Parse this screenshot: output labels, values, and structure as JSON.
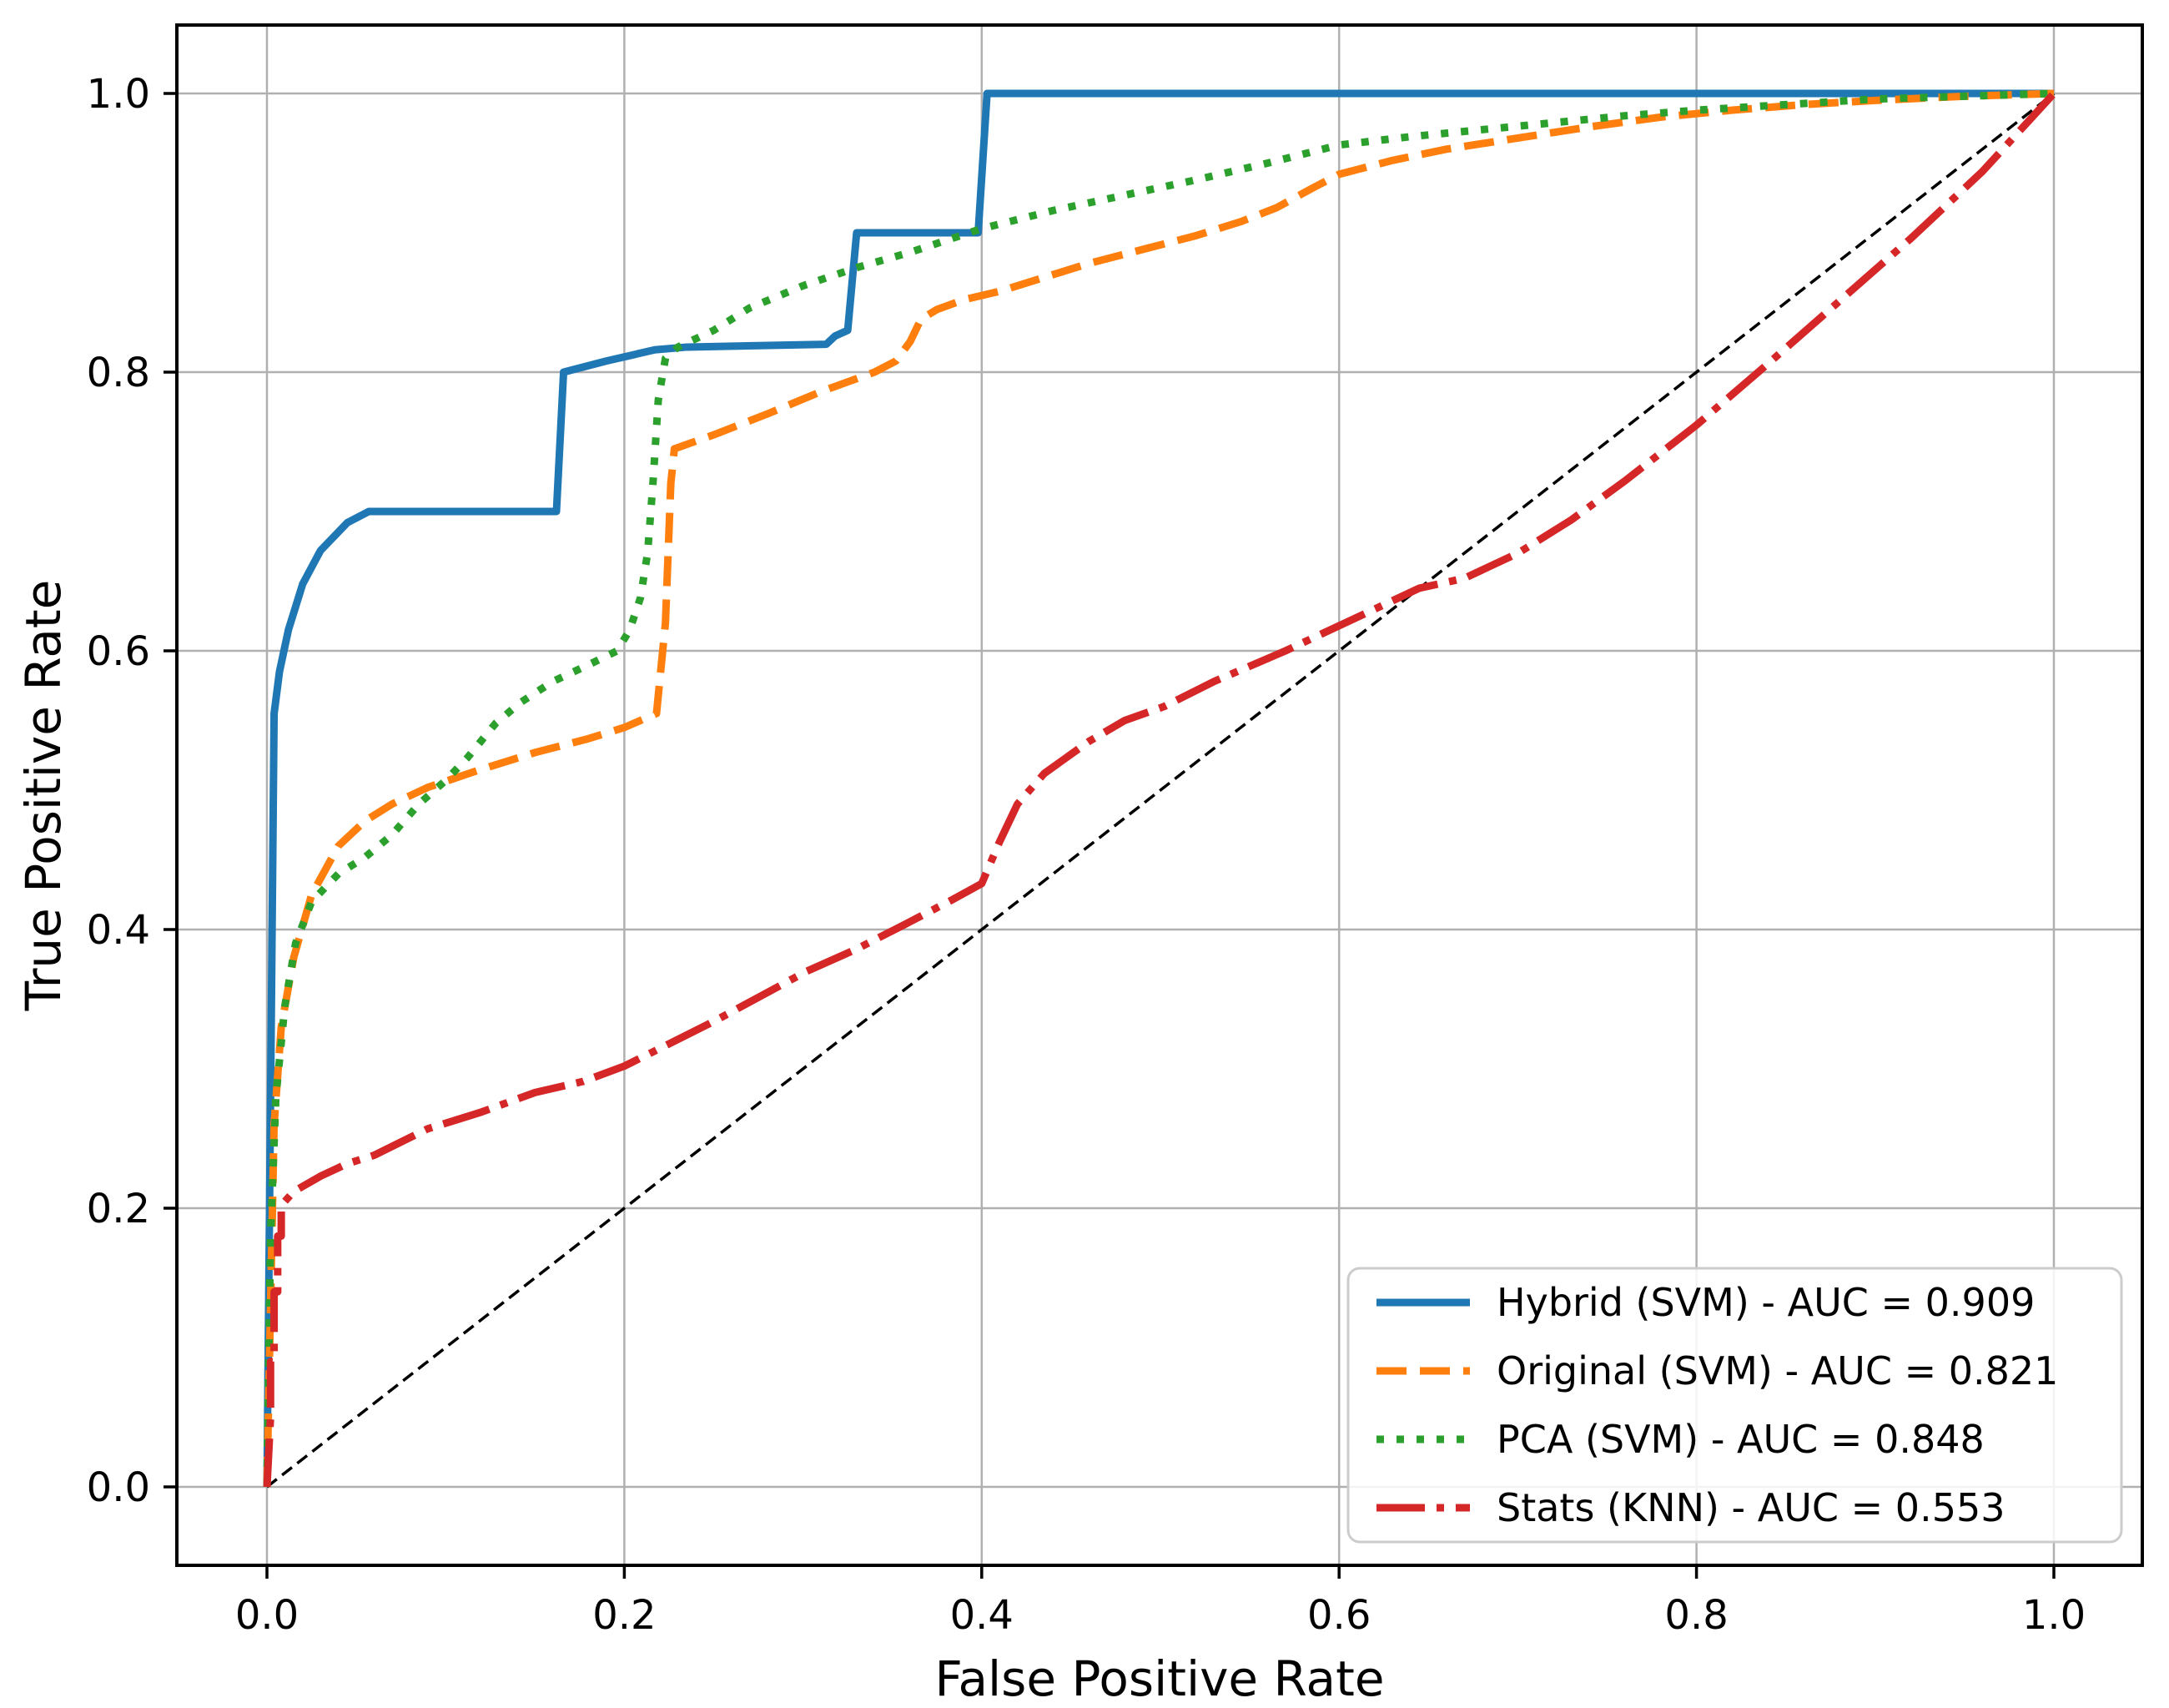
{
  "figure": {
    "background_color": "#ffffff",
    "grid_color": "#b0b0b0",
    "spine_color": "#000000",
    "legend_border_color": "#cccccc",
    "legend_background": "rgba(255,255,255,0.85)"
  },
  "chart_data": {
    "type": "line",
    "title": "",
    "xlabel": "False Positive Rate",
    "ylabel": "True Positive Rate",
    "xlim": [
      -0.05,
      1.05
    ],
    "ylim": [
      -0.05,
      1.05
    ],
    "grid": true,
    "legend_position": "lower right",
    "x_ticks": [
      0,
      0.2,
      0.4,
      0.6,
      0.8,
      1.0
    ],
    "x_tick_labels": [
      "0.0",
      "0.2",
      "0.4",
      "0.6",
      "0.8",
      "1.0"
    ],
    "y_ticks": [
      0,
      0.2,
      0.4,
      0.6,
      0.8,
      1.0
    ],
    "y_tick_labels": [
      "0.0",
      "0.2",
      "0.4",
      "0.6",
      "0.8",
      "1.0"
    ],
    "series": [
      {
        "name": "hybrid-svm",
        "legend_label": "Hybrid (SVM) - AUC = 0.909",
        "auc": 0.909,
        "color": "#1f77b4",
        "linestyle": "solid",
        "points": [
          [
            0.0,
            0.0
          ],
          [
            0.004,
            0.555
          ],
          [
            0.007,
            0.585
          ],
          [
            0.012,
            0.615
          ],
          [
            0.02,
            0.648
          ],
          [
            0.03,
            0.672
          ],
          [
            0.045,
            0.692
          ],
          [
            0.057,
            0.7
          ],
          [
            0.162,
            0.7
          ],
          [
            0.166,
            0.8
          ],
          [
            0.19,
            0.808
          ],
          [
            0.217,
            0.816
          ],
          [
            0.235,
            0.818
          ],
          [
            0.313,
            0.82
          ],
          [
            0.318,
            0.826
          ],
          [
            0.325,
            0.83
          ],
          [
            0.33,
            0.9
          ],
          [
            0.398,
            0.9
          ],
          [
            0.403,
            1.0
          ],
          [
            1.0,
            1.0
          ]
        ]
      },
      {
        "name": "original-svm",
        "legend_label": "Original (SVM) - AUC = 0.821",
        "auc": 0.821,
        "color": "#ff7f0e",
        "linestyle": "dashed",
        "points": [
          [
            0.0,
            0.0
          ],
          [
            0.004,
            0.26
          ],
          [
            0.008,
            0.33
          ],
          [
            0.015,
            0.38
          ],
          [
            0.025,
            0.425
          ],
          [
            0.04,
            0.46
          ],
          [
            0.055,
            0.478
          ],
          [
            0.07,
            0.49
          ],
          [
            0.09,
            0.502
          ],
          [
            0.12,
            0.515
          ],
          [
            0.15,
            0.527
          ],
          [
            0.18,
            0.537
          ],
          [
            0.2,
            0.545
          ],
          [
            0.218,
            0.555
          ],
          [
            0.223,
            0.62
          ],
          [
            0.226,
            0.72
          ],
          [
            0.228,
            0.745
          ],
          [
            0.25,
            0.755
          ],
          [
            0.28,
            0.77
          ],
          [
            0.31,
            0.786
          ],
          [
            0.34,
            0.8
          ],
          [
            0.352,
            0.808
          ],
          [
            0.36,
            0.822
          ],
          [
            0.366,
            0.838
          ],
          [
            0.375,
            0.845
          ],
          [
            0.39,
            0.852
          ],
          [
            0.41,
            0.858
          ],
          [
            0.44,
            0.87
          ],
          [
            0.46,
            0.878
          ],
          [
            0.49,
            0.888
          ],
          [
            0.52,
            0.898
          ],
          [
            0.545,
            0.908
          ],
          [
            0.565,
            0.918
          ],
          [
            0.585,
            0.932
          ],
          [
            0.6,
            0.942
          ],
          [
            0.63,
            0.952
          ],
          [
            0.66,
            0.96
          ],
          [
            0.7,
            0.968
          ],
          [
            0.74,
            0.976
          ],
          [
            0.78,
            0.983
          ],
          [
            0.82,
            0.988
          ],
          [
            0.86,
            0.992
          ],
          [
            0.9,
            0.995
          ],
          [
            0.95,
            0.998
          ],
          [
            1.0,
            1.0
          ]
        ]
      },
      {
        "name": "pca-svm",
        "legend_label": "PCA (SVM) - AUC = 0.848",
        "auc": 0.848,
        "color": "#2ca02c",
        "linestyle": "dotted",
        "points": [
          [
            0.0,
            0.0
          ],
          [
            0.002,
            0.18
          ],
          [
            0.005,
            0.28
          ],
          [
            0.01,
            0.345
          ],
          [
            0.016,
            0.39
          ],
          [
            0.025,
            0.42
          ],
          [
            0.04,
            0.44
          ],
          [
            0.055,
            0.452
          ],
          [
            0.07,
            0.468
          ],
          [
            0.085,
            0.49
          ],
          [
            0.1,
            0.507
          ],
          [
            0.112,
            0.523
          ],
          [
            0.128,
            0.548
          ],
          [
            0.142,
            0.563
          ],
          [
            0.16,
            0.578
          ],
          [
            0.18,
            0.59
          ],
          [
            0.196,
            0.6
          ],
          [
            0.203,
            0.615
          ],
          [
            0.209,
            0.638
          ],
          [
            0.213,
            0.67
          ],
          [
            0.216,
            0.72
          ],
          [
            0.219,
            0.78
          ],
          [
            0.223,
            0.81
          ],
          [
            0.23,
            0.818
          ],
          [
            0.25,
            0.83
          ],
          [
            0.27,
            0.846
          ],
          [
            0.3,
            0.862
          ],
          [
            0.33,
            0.875
          ],
          [
            0.36,
            0.886
          ],
          [
            0.4,
            0.903
          ],
          [
            0.44,
            0.916
          ],
          [
            0.48,
            0.927
          ],
          [
            0.52,
            0.938
          ],
          [
            0.56,
            0.95
          ],
          [
            0.6,
            0.963
          ],
          [
            0.64,
            0.969
          ],
          [
            0.68,
            0.974
          ],
          [
            0.72,
            0.979
          ],
          [
            0.76,
            0.984
          ],
          [
            0.8,
            0.988
          ],
          [
            0.85,
            0.992
          ],
          [
            0.9,
            0.996
          ],
          [
            0.95,
            0.998
          ],
          [
            1.0,
            1.0
          ]
        ]
      },
      {
        "name": "stats-knn",
        "legend_label": "Stats (KNN) - AUC = 0.553",
        "auc": 0.553,
        "color": "#d62728",
        "linestyle": "dashdot",
        "points": [
          [
            0.0,
            0.0
          ],
          [
            0.002,
            0.05
          ],
          [
            0.002,
            0.09
          ],
          [
            0.004,
            0.09
          ],
          [
            0.004,
            0.14
          ],
          [
            0.006,
            0.14
          ],
          [
            0.006,
            0.18
          ],
          [
            0.008,
            0.18
          ],
          [
            0.008,
            0.202
          ],
          [
            0.015,
            0.212
          ],
          [
            0.03,
            0.223
          ],
          [
            0.045,
            0.232
          ],
          [
            0.06,
            0.238
          ],
          [
            0.09,
            0.257
          ],
          [
            0.12,
            0.269
          ],
          [
            0.15,
            0.283
          ],
          [
            0.177,
            0.291
          ],
          [
            0.2,
            0.302
          ],
          [
            0.222,
            0.316
          ],
          [
            0.25,
            0.334
          ],
          [
            0.276,
            0.352
          ],
          [
            0.302,
            0.37
          ],
          [
            0.33,
            0.386
          ],
          [
            0.356,
            0.403
          ],
          [
            0.383,
            0.421
          ],
          [
            0.4,
            0.433
          ],
          [
            0.41,
            0.463
          ],
          [
            0.42,
            0.49
          ],
          [
            0.435,
            0.512
          ],
          [
            0.46,
            0.535
          ],
          [
            0.48,
            0.55
          ],
          [
            0.502,
            0.56
          ],
          [
            0.53,
            0.578
          ],
          [
            0.57,
            0.6
          ],
          [
            0.6,
            0.618
          ],
          [
            0.625,
            0.633
          ],
          [
            0.645,
            0.645
          ],
          [
            0.67,
            0.652
          ],
          [
            0.7,
            0.67
          ],
          [
            0.73,
            0.694
          ],
          [
            0.76,
            0.722
          ],
          [
            0.8,
            0.762
          ],
          [
            0.84,
            0.806
          ],
          [
            0.88,
            0.851
          ],
          [
            0.92,
            0.896
          ],
          [
            0.96,
            0.944
          ],
          [
            1.0,
            1.0
          ]
        ]
      }
    ],
    "reference_line": {
      "name": "chance-diagonal",
      "color": "#000000",
      "linestyle": "dashed",
      "points": [
        [
          0.0,
          0.0
        ],
        [
          1.0,
          1.0
        ]
      ]
    }
  }
}
